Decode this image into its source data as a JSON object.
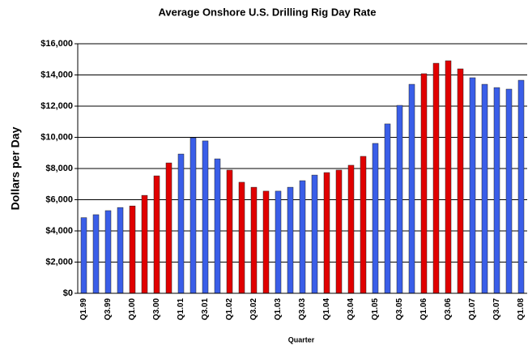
{
  "chart_data": {
    "type": "bar",
    "title": "Average Onshore U.S. Drilling Rig Day Rate",
    "y_label": "Dollars per Day",
    "x_label": "Quarter",
    "categories": [
      "Q1.99",
      null,
      "Q3.99",
      null,
      "Q1.00",
      null,
      "Q3.00",
      null,
      "Q1.01",
      null,
      "Q3.01",
      null,
      "Q1.02",
      null,
      "Q3.02",
      null,
      "Q1.03",
      null,
      "Q3.03",
      null,
      "Q1.04",
      null,
      "Q3.04",
      null,
      "Q1.05",
      null,
      "Q3.05",
      null,
      "Q1.06",
      null,
      "Q3.06",
      null,
      "Q1.07",
      null,
      "Q3.07",
      null,
      "Q1.08"
    ],
    "values": [
      4850,
      5040,
      5300,
      5500,
      5600,
      6280,
      7530,
      8360,
      8930,
      9970,
      9770,
      8620,
      7900,
      7120,
      6800,
      6550,
      6550,
      6800,
      7220,
      7580,
      7740,
      7900,
      8210,
      8780,
      9610,
      10860,
      12050,
      13400,
      14080,
      14750,
      14910,
      14390,
      13820,
      13400,
      13190,
      13090,
      13660
    ],
    "colors": [
      "#3a5ee8",
      "#3a5ee8",
      "#3a5ee8",
      "#3a5ee8",
      "#e00000",
      "#e00000",
      "#e00000",
      "#e00000",
      "#3a5ee8",
      "#3a5ee8",
      "#3a5ee8",
      "#3a5ee8",
      "#e00000",
      "#e00000",
      "#e00000",
      "#e00000",
      "#3a5ee8",
      "#3a5ee8",
      "#3a5ee8",
      "#3a5ee8",
      "#e00000",
      "#e00000",
      "#e00000",
      "#e00000",
      "#3a5ee8",
      "#3a5ee8",
      "#3a5ee8",
      "#3a5ee8",
      "#e00000",
      "#e00000",
      "#e00000",
      "#e00000",
      "#3a5ee8",
      "#3a5ee8",
      "#3a5ee8",
      "#3a5ee8",
      "#3a5ee8"
    ],
    "ylim": [
      0,
      16000
    ],
    "yticks": [
      {
        "value": 0,
        "label": "$0"
      },
      {
        "value": 2000,
        "label": "$2,000"
      },
      {
        "value": 4000,
        "label": "$4,000"
      },
      {
        "value": 6000,
        "label": "$6,000"
      },
      {
        "value": 8000,
        "label": "$8,000"
      },
      {
        "value": 10000,
        "label": "$10,000"
      },
      {
        "value": 12000,
        "label": "$12,000"
      },
      {
        "value": 14000,
        "label": "$14,000"
      },
      {
        "value": 16000,
        "label": "$16,000"
      }
    ],
    "grid": true
  }
}
